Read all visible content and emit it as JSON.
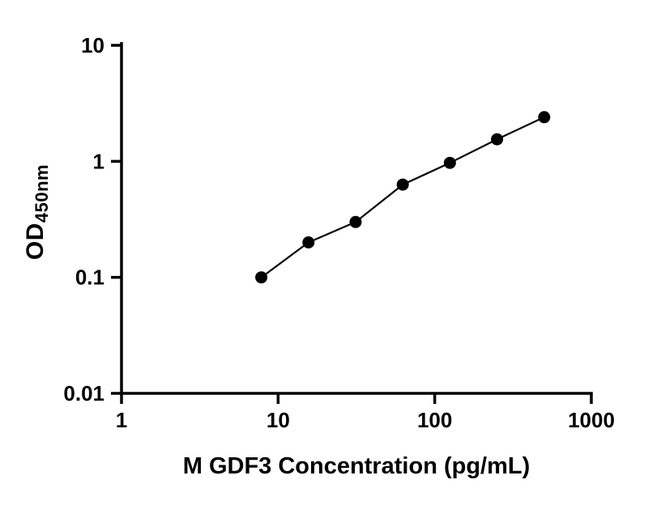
{
  "chart_data": {
    "type": "scatter",
    "title": "",
    "xlabel": "M GDF3 Concentration (pg/mL)",
    "ylabel_base": "OD",
    "ylabel_sub": "450nm",
    "xscale": "log",
    "yscale": "log",
    "xlim": [
      1,
      1000
    ],
    "ylim": [
      0.01,
      10
    ],
    "x": [
      7.81,
      15.63,
      31.25,
      62.5,
      125,
      250,
      500
    ],
    "y": [
      0.1,
      0.2,
      0.3,
      0.63,
      0.97,
      1.55,
      2.4
    ],
    "x_ticks": [
      1,
      10,
      100,
      1000
    ],
    "x_tick_labels": [
      "1",
      "10",
      "100",
      "1000"
    ],
    "y_ticks": [
      0.01,
      0.1,
      1,
      10
    ],
    "y_tick_labels": [
      "0.01",
      "0.1",
      "1",
      "10"
    ],
    "grid": false,
    "legend": "none",
    "marker_shape": "circle",
    "marker_color": "#000000",
    "line_color": "#000000",
    "axis_color": "#000000",
    "background_color": "#ffffff"
  }
}
